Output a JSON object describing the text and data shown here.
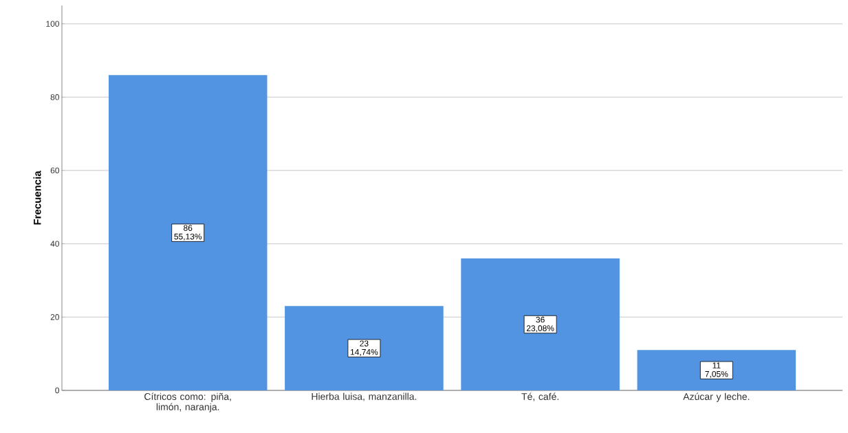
{
  "chart_data": {
    "type": "bar",
    "ylabel": "Frecuencia",
    "categories": [
      "Cítricos como: piña, limón, naranja.",
      "Hierba luisa, manzanilla.",
      "Té, café.",
      "Azúcar y leche."
    ],
    "values": [
      86,
      23,
      36,
      11
    ],
    "value_labels": [
      "86 55,13%",
      "23 14,74%",
      "36 23,08%",
      "11 7,05%"
    ],
    "color": "#5294e2",
    "ylim": [
      0,
      105
    ],
    "yticks": [
      0,
      20,
      40,
      60,
      80,
      100
    ],
    "grid": "y"
  }
}
